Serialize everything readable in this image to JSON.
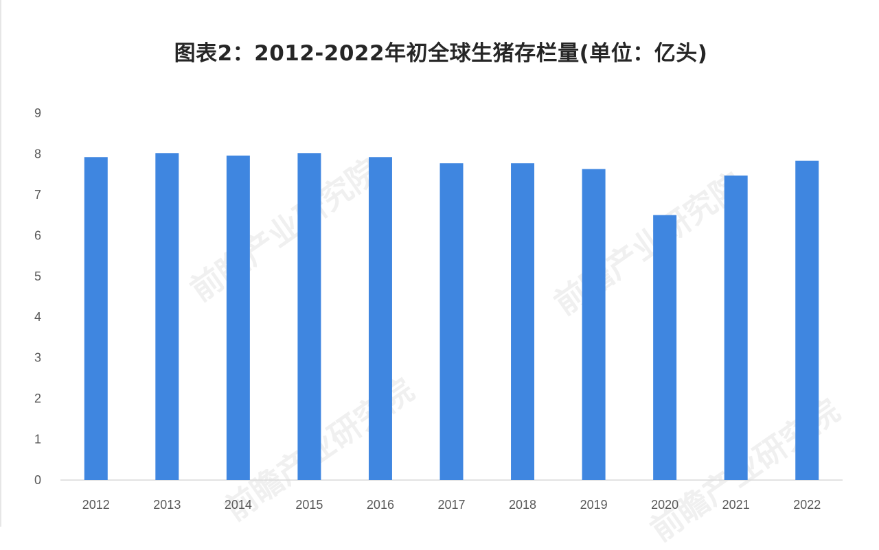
{
  "chart_data": {
    "type": "bar",
    "title": "图表2：2012-2022年初全球生猪存栏量(单位：亿头)",
    "xlabel": "",
    "ylabel": "",
    "categories": [
      "2012",
      "2013",
      "2014",
      "2015",
      "2016",
      "2017",
      "2018",
      "2019",
      "2020",
      "2021",
      "2022"
    ],
    "values": [
      7.92,
      8.02,
      7.96,
      8.02,
      7.92,
      7.77,
      7.77,
      7.63,
      6.5,
      7.47,
      7.83
    ],
    "ylim": [
      0,
      9
    ],
    "yticks": [
      "0",
      "1",
      "2",
      "3",
      "4",
      "5",
      "6",
      "7",
      "8",
      "9"
    ],
    "grid": false,
    "legend": "none",
    "bar_color": "#3f86e0",
    "axis_color": "#d9d9d9"
  },
  "watermark": {
    "text": "前瞻产业研究院"
  }
}
